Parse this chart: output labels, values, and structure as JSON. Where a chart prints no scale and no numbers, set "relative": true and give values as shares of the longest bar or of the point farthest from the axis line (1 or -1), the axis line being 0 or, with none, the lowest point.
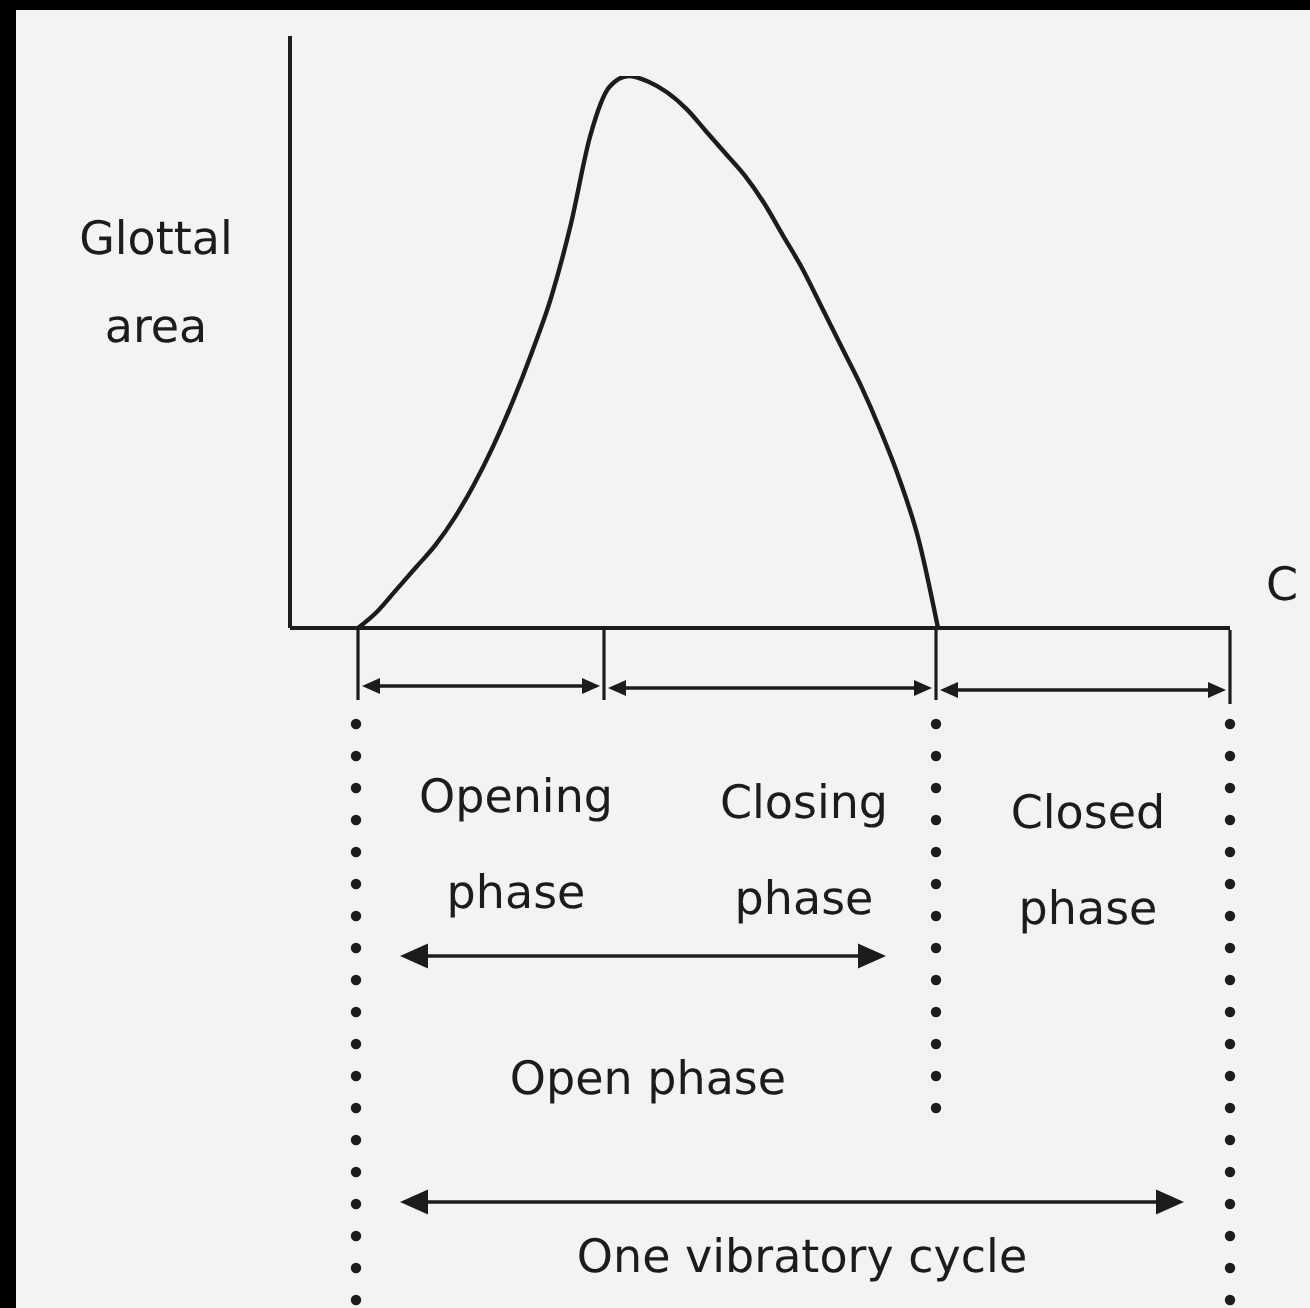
{
  "chart_data": {
    "type": "line",
    "ylabel": "Glottal area",
    "xlabel": "C",
    "categories": [
      null,
      null,
      null,
      null,
      null,
      null,
      null,
      null,
      null,
      null,
      null,
      null,
      null,
      null,
      null,
      null,
      null,
      null,
      null,
      null,
      null,
      null,
      null,
      null,
      null,
      null,
      null,
      null,
      null,
      null,
      null,
      null,
      null,
      null,
      null,
      null,
      null,
      null,
      null,
      null,
      null,
      null,
      null,
      null,
      null,
      null
    ],
    "values": [
      0,
      0.03,
      0.07,
      0.11,
      0.15,
      0.2,
      0.26,
      0.33,
      0.41,
      0.5,
      0.6,
      0.73,
      0.89,
      0.98,
      1,
      0.99,
      0.97,
      0.94,
      0.9,
      0.86,
      0.82,
      0.77,
      0.71,
      0.65,
      0.58,
      0.51,
      0.44,
      0.36,
      0.27,
      0.16,
      0,
      null,
      null,
      null,
      null,
      null,
      null,
      null,
      null,
      null,
      null,
      null,
      null,
      null,
      null,
      null
    ],
    "color": "#1c1c1c",
    "relative": true,
    "marker": "none",
    "line_style": "solid",
    "annotations": [
      "Opening phase",
      "Closing phase",
      "Closed phase",
      "Open phase",
      "One vibratory cycle"
    ]
  }
}
